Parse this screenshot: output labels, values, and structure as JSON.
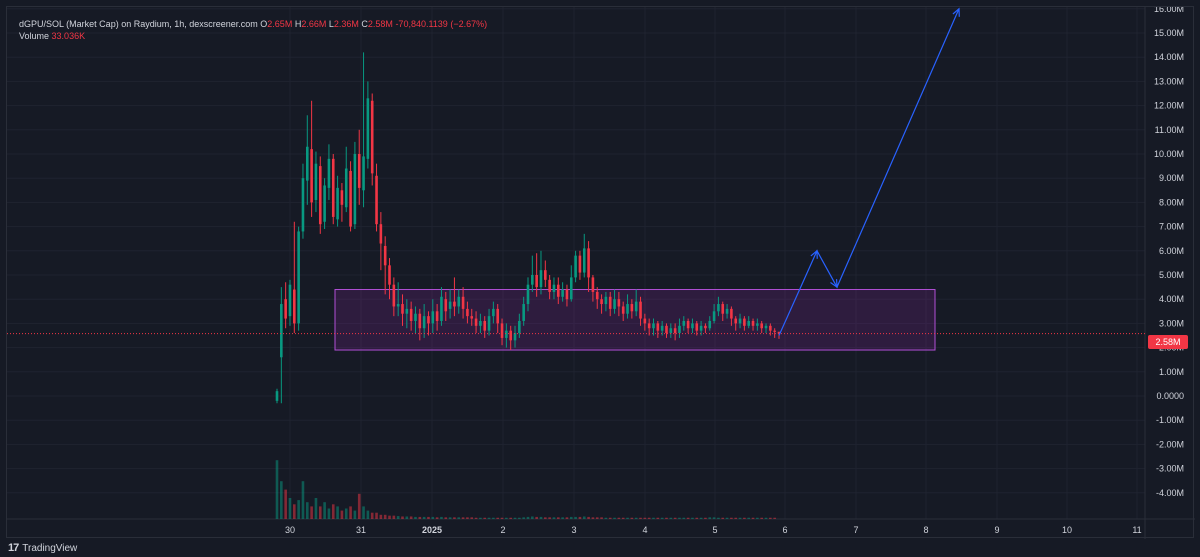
{
  "legend": {
    "symbol": "dGPU/SOL (Market Cap) on Raydium, 1h, dexscreener.com",
    "open_label": "O",
    "open": "2.65M",
    "high_label": "H",
    "high": "2.66M",
    "low_label": "L",
    "low": "2.36M",
    "close_label": "C",
    "close": "2.58M",
    "change": "-70,840.1139 (−2.67%)",
    "volume_label": "Volume",
    "volume": "33.036K"
  },
  "current_price_label": "2.58M",
  "branding": {
    "logo_mark": "17",
    "name": "TradingView"
  },
  "colors": {
    "background": "#161a25",
    "grid": "#1f2330",
    "up": "#089981",
    "down": "#f23645",
    "box_stroke": "#b14fd6",
    "box_fill": "rgba(156,39,176,0.18)",
    "arrow": "#2962ff",
    "axis_text": "#d1d4dc"
  },
  "chart_data": {
    "type": "candlestick",
    "y_axis": {
      "ticks": [
        "16.00M",
        "15.00M",
        "14.00M",
        "13.00M",
        "12.00M",
        "11.00M",
        "10.00M",
        "9.00M",
        "8.00M",
        "7.00M",
        "6.00M",
        "5.00M",
        "4.00M",
        "3.00M",
        "2.00M",
        "1.00M",
        "0.0000",
        "-1.00M",
        "-2.00M",
        "-3.00M",
        "-4.00M"
      ],
      "tick_values": [
        16,
        15,
        14,
        13,
        12,
        11,
        10,
        9,
        8,
        7,
        6,
        5,
        4,
        3,
        2,
        1,
        0,
        -1,
        -2,
        -3,
        -4
      ],
      "unit": "M",
      "range": [
        -5,
        16.5
      ]
    },
    "x_axis": {
      "ticks": [
        "30",
        "31",
        "2025",
        "2",
        "3",
        "4",
        "5",
        "6",
        "7",
        "8",
        "9",
        "10",
        "11"
      ],
      "tick_index": [
        0,
        1,
        2,
        3,
        4,
        5,
        6,
        7,
        8,
        9,
        10,
        11,
        12
      ],
      "bold": [
        false,
        false,
        true,
        false,
        false,
        false,
        false,
        false,
        false,
        false,
        false,
        false,
        false
      ]
    },
    "candles": [
      [
        -0.2,
        0.2,
        -0.3,
        0.3
      ],
      [
        1.6,
        3.8,
        -0.3,
        4.5
      ],
      [
        4.0,
        3.2,
        2.8,
        4.7
      ],
      [
        3.3,
        4.6,
        2.9,
        4.8
      ],
      [
        4.4,
        3.0,
        2.6,
        7.2
      ],
      [
        3.0,
        6.8,
        2.7,
        7.0
      ],
      [
        6.8,
        9.0,
        6.5,
        9.6
      ],
      [
        8.9,
        10.3,
        7.9,
        11.6
      ],
      [
        10.2,
        8.0,
        7.4,
        12.2
      ],
      [
        8.1,
        9.6,
        7.6,
        10.1
      ],
      [
        9.5,
        7.1,
        6.7,
        9.9
      ],
      [
        7.2,
        8.7,
        6.9,
        9.0
      ],
      [
        8.6,
        9.8,
        8.1,
        10.4
      ],
      [
        9.8,
        7.4,
        7.1,
        10.0
      ],
      [
        7.3,
        8.6,
        7.0,
        9.1
      ],
      [
        8.5,
        7.9,
        7.2,
        8.8
      ],
      [
        7.8,
        9.4,
        7.6,
        10.3
      ],
      [
        9.3,
        7.0,
        6.8,
        9.7
      ],
      [
        7.1,
        10.0,
        6.9,
        10.5
      ],
      [
        10.0,
        8.6,
        7.9,
        11.0
      ],
      [
        8.5,
        9.9,
        7.8,
        14.2
      ],
      [
        9.8,
        12.3,
        9.4,
        13.0
      ],
      [
        12.2,
        9.2,
        8.7,
        12.5
      ],
      [
        9.1,
        7.1,
        6.8,
        9.6
      ],
      [
        7.1,
        6.3,
        5.2,
        7.6
      ],
      [
        6.2,
        5.4,
        4.2,
        6.6
      ],
      [
        5.4,
        4.6,
        4.0,
        5.7
      ],
      [
        4.6,
        3.7,
        3.3,
        4.9
      ],
      [
        3.7,
        3.8,
        3.3,
        4.7
      ],
      [
        3.8,
        3.4,
        2.9,
        4.2
      ],
      [
        3.4,
        3.6,
        2.8,
        4.0
      ],
      [
        3.6,
        3.1,
        2.7,
        3.9
      ],
      [
        3.1,
        3.4,
        2.6,
        3.7
      ],
      [
        3.4,
        2.8,
        2.3,
        3.6
      ],
      [
        2.8,
        3.3,
        2.4,
        3.8
      ],
      [
        3.3,
        3.0,
        2.5,
        3.5
      ],
      [
        3.0,
        3.5,
        2.6,
        4.0
      ],
      [
        3.5,
        3.1,
        2.7,
        3.8
      ],
      [
        3.1,
        4.1,
        2.9,
        4.5
      ],
      [
        4.0,
        3.5,
        3.1,
        4.3
      ],
      [
        3.6,
        3.9,
        3.2,
        4.4
      ],
      [
        3.9,
        3.7,
        3.3,
        4.9
      ],
      [
        3.7,
        4.1,
        3.4,
        4.4
      ],
      [
        4.1,
        3.6,
        3.2,
        4.5
      ],
      [
        3.6,
        3.3,
        3.0,
        3.9
      ],
      [
        3.3,
        3.2,
        2.9,
        3.6
      ],
      [
        3.2,
        2.9,
        2.6,
        3.5
      ],
      [
        2.9,
        3.1,
        2.6,
        3.4
      ],
      [
        3.1,
        2.7,
        2.4,
        3.3
      ],
      [
        2.7,
        3.3,
        2.5,
        3.6
      ],
      [
        3.3,
        3.6,
        3.0,
        3.9
      ],
      [
        3.6,
        3.0,
        2.6,
        3.8
      ],
      [
        3.0,
        2.4,
        2.1,
        3.2
      ],
      [
        2.4,
        2.7,
        2.0,
        3.0
      ],
      [
        2.7,
        2.3,
        1.9,
        2.9
      ],
      [
        2.3,
        2.6,
        2.0,
        2.9
      ],
      [
        2.6,
        3.1,
        2.4,
        3.4
      ],
      [
        3.1,
        3.8,
        2.9,
        4.1
      ],
      [
        3.8,
        4.6,
        3.5,
        4.9
      ],
      [
        4.6,
        5.0,
        4.3,
        5.8
      ],
      [
        5.0,
        4.5,
        4.1,
        5.9
      ],
      [
        4.5,
        5.2,
        4.2,
        6.0
      ],
      [
        5.2,
        4.8,
        4.5,
        5.6
      ],
      [
        4.8,
        4.3,
        4.0,
        5.0
      ],
      [
        4.3,
        4.6,
        4.0,
        4.9
      ],
      [
        4.6,
        4.1,
        3.8,
        4.9
      ],
      [
        4.1,
        4.4,
        3.9,
        4.7
      ],
      [
        4.4,
        4.0,
        3.7,
        4.6
      ],
      [
        4.0,
        4.9,
        3.9,
        5.4
      ],
      [
        4.9,
        5.8,
        4.7,
        6.0
      ],
      [
        5.8,
        5.1,
        4.8,
        6.0
      ],
      [
        5.1,
        6.1,
        4.9,
        6.7
      ],
      [
        6.1,
        4.9,
        4.3,
        6.4
      ],
      [
        4.9,
        4.3,
        3.9,
        5.0
      ],
      [
        4.3,
        4.0,
        3.6,
        4.5
      ],
      [
        4.0,
        3.8,
        3.4,
        4.2
      ],
      [
        3.8,
        4.1,
        3.5,
        4.3
      ],
      [
        4.1,
        3.6,
        3.3,
        4.3
      ],
      [
        3.6,
        4.0,
        3.4,
        4.4
      ],
      [
        4.0,
        3.7,
        3.3,
        4.3
      ],
      [
        3.7,
        3.4,
        3.1,
        3.9
      ],
      [
        3.4,
        3.8,
        3.2,
        4.2
      ],
      [
        3.8,
        3.5,
        3.2,
        4.0
      ],
      [
        3.5,
        3.9,
        3.3,
        4.4
      ],
      [
        3.9,
        3.2,
        2.9,
        4.1
      ],
      [
        3.2,
        3.0,
        2.7,
        3.4
      ],
      [
        3.0,
        2.8,
        2.5,
        3.2
      ],
      [
        2.8,
        3.0,
        2.5,
        3.2
      ],
      [
        3.0,
        2.7,
        2.4,
        3.1
      ],
      [
        2.7,
        2.9,
        2.5,
        3.1
      ],
      [
        2.9,
        2.6,
        2.4,
        3.0
      ],
      [
        2.6,
        2.8,
        2.4,
        3.0
      ],
      [
        2.8,
        2.6,
        2.3,
        3.0
      ],
      [
        2.6,
        2.9,
        2.4,
        3.2
      ],
      [
        2.9,
        3.1,
        2.7,
        3.3
      ],
      [
        3.1,
        2.8,
        2.6,
        3.2
      ],
      [
        2.8,
        3.0,
        2.6,
        3.2
      ],
      [
        3.0,
        2.7,
        2.5,
        3.1
      ],
      [
        2.7,
        2.9,
        2.5,
        3.1
      ],
      [
        2.9,
        2.8,
        2.6,
        3.0
      ],
      [
        2.8,
        3.1,
        2.7,
        3.3
      ],
      [
        3.1,
        3.5,
        3.0,
        3.8
      ],
      [
        3.5,
        3.8,
        3.3,
        4.1
      ],
      [
        3.8,
        3.4,
        3.1,
        3.9
      ],
      [
        3.4,
        3.6,
        3.2,
        3.8
      ],
      [
        3.6,
        3.2,
        2.9,
        3.7
      ],
      [
        3.2,
        3.0,
        2.7,
        3.3
      ],
      [
        3.0,
        3.2,
        2.8,
        3.4
      ],
      [
        3.2,
        2.9,
        2.7,
        3.3
      ],
      [
        2.9,
        3.1,
        2.8,
        3.3
      ],
      [
        3.1,
        2.9,
        2.7,
        3.2
      ],
      [
        2.9,
        3.0,
        2.7,
        3.2
      ],
      [
        3.0,
        2.8,
        2.6,
        3.1
      ],
      [
        2.8,
        2.9,
        2.6,
        3.0
      ],
      [
        2.9,
        2.7,
        2.5,
        3.0
      ],
      [
        2.7,
        2.65,
        2.4,
        2.8
      ],
      [
        2.65,
        2.58,
        2.36,
        2.66
      ]
    ],
    "volume_max_label": "33.036K",
    "volumes": [
      1.4,
      0.9,
      0.7,
      0.5,
      0.35,
      0.45,
      0.9,
      0.4,
      0.3,
      0.5,
      0.3,
      0.4,
      0.25,
      0.35,
      0.3,
      0.2,
      0.25,
      0.3,
      0.2,
      0.6,
      0.3,
      0.2,
      0.15,
      0.15,
      0.1,
      0.1,
      0.08,
      0.08,
      0.07,
      0.06,
      0.06,
      0.06,
      0.05,
      0.05,
      0.05,
      0.05,
      0.05,
      0.04,
      0.05,
      0.04,
      0.04,
      0.04,
      0.04,
      0.04,
      0.04,
      0.04,
      0.03,
      0.03,
      0.03,
      0.03,
      0.03,
      0.03,
      0.03,
      0.03,
      0.03,
      0.03,
      0.03,
      0.04,
      0.05,
      0.06,
      0.05,
      0.05,
      0.04,
      0.04,
      0.04,
      0.04,
      0.04,
      0.04,
      0.05,
      0.05,
      0.05,
      0.06,
      0.05,
      0.04,
      0.04,
      0.04,
      0.03,
      0.03,
      0.03,
      0.03,
      0.03,
      0.03,
      0.03,
      0.03,
      0.03,
      0.03,
      0.03,
      0.03,
      0.03,
      0.03,
      0.03,
      0.03,
      0.03,
      0.03,
      0.03,
      0.03,
      0.03,
      0.03,
      0.03,
      0.03,
      0.04,
      0.04,
      0.03,
      0.03,
      0.03,
      0.03,
      0.03,
      0.03,
      0.03,
      0.03,
      0.03,
      0.03,
      0.03,
      0.03,
      0.03,
      0.03
    ],
    "annotations": {
      "range_box": {
        "y_top": 4.4,
        "y_bottom": 1.9
      },
      "projection_path_y": [
        2.5,
        6.0,
        4.5,
        16.0
      ]
    }
  }
}
